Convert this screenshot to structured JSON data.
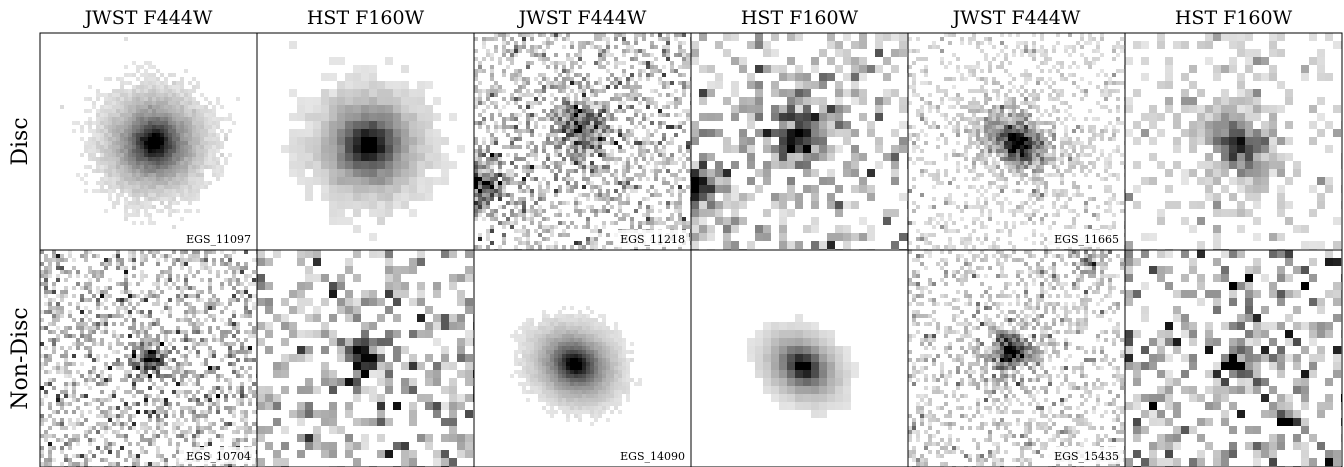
{
  "column_headers": [
    "JWST F444W",
    "HST F160W",
    "JWST F444W",
    "HST F160W",
    "JWST F444W",
    "HST F160W"
  ],
  "row_labels": [
    "Disc",
    "Non-Disc"
  ],
  "galaxy_ids": [
    [
      "EGS_11097",
      "EGS_11218",
      "EGS_11665"
    ],
    [
      "EGS_10704",
      "EGS_14090",
      "EGS_15435"
    ]
  ]
}
